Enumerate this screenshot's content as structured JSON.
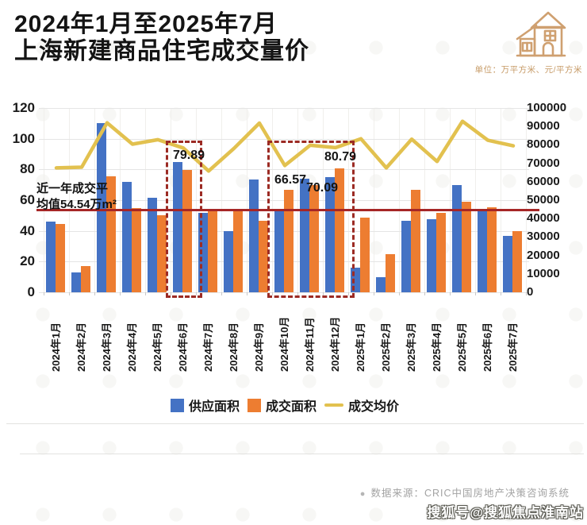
{
  "header": {
    "title_line1": "2024年1月至2025年7月",
    "title_line2": "上海新建商品住宅成交量价",
    "unit_label": "单位：万平方米、元/平方米"
  },
  "chart_data": {
    "type": "bar",
    "title": "2024年1月至2025年7月上海新建商品住宅成交量价",
    "categories": [
      "2024年1月",
      "2024年2月",
      "2024年3月",
      "2024年4月",
      "2024年5月",
      "2024年6月",
      "2024年7月",
      "2024年8月",
      "2024年9月",
      "2024年10月",
      "2024年11月",
      "2024年12月",
      "2025年1月",
      "2025年2月",
      "2025年3月",
      "2025年4月",
      "2025年5月",
      "2025年6月",
      "2025年7月"
    ],
    "series": [
      {
        "name": "供应面积",
        "type": "bar",
        "axis": "left",
        "color": "#4472c4",
        "values": [
          46,
          13,
          110,
          72,
          61.5,
          85,
          52,
          40,
          73.5,
          53,
          74,
          75,
          16,
          10,
          46.5,
          47.5,
          70,
          53,
          37
        ]
      },
      {
        "name": "成交面积",
        "type": "bar",
        "axis": "left",
        "color": "#ed7d31",
        "values": [
          44.5,
          17,
          75.5,
          55,
          50,
          79.89,
          53.5,
          53,
          46.5,
          66.57,
          70.09,
          80.79,
          48.5,
          25,
          66.5,
          51.5,
          59,
          55.5,
          40
        ]
      },
      {
        "name": "成交均价",
        "type": "line",
        "axis": "right",
        "color": "#e2c14f",
        "values": [
          67500,
          67900,
          92000,
          80400,
          82800,
          78300,
          65800,
          78100,
          91800,
          68800,
          79800,
          78500,
          83300,
          67500,
          83100,
          71000,
          92800,
          82500,
          79500
        ]
      }
    ],
    "left_axis": {
      "min": 0,
      "max": 120,
      "step": 20,
      "unit": "万平方米"
    },
    "right_axis": {
      "min": 0,
      "max": 100000,
      "step": 10000,
      "unit": "元/平方米"
    },
    "grid": true,
    "legend_position": "bottom",
    "average_line": {
      "value": 54.54,
      "color": "#a62626",
      "label_line1": "近一年成交平",
      "label_line2": "均值54.54万m²"
    },
    "data_labels": [
      {
        "index": 5,
        "series": "成交面积",
        "text": "79.89"
      },
      {
        "index": 9,
        "series": "成交面积",
        "text": "66.57"
      },
      {
        "index": 10,
        "series": "成交面积",
        "text": "70.09"
      },
      {
        "index": 11,
        "series": "成交面积",
        "text": "80.79"
      }
    ],
    "highlight_boxes": [
      {
        "from_index": 5,
        "to_index": 5
      },
      {
        "from_index": 9,
        "to_index": 11
      }
    ]
  },
  "footer": {
    "source_bullet": "●",
    "source_text": "数据来源：CRIC中国房地产决策咨询系统",
    "watermark": "搜狐号@搜狐焦点淮南站"
  },
  "colors": {
    "supply_bar": "#4472c4",
    "deal_bar": "#ed7d31",
    "price_line": "#e2c14f",
    "average_line": "#a62626",
    "highlight_box": "#9c2b24",
    "title_text": "#141414",
    "unit_text": "#c69a66",
    "icon_tan": "#cfa070"
  }
}
